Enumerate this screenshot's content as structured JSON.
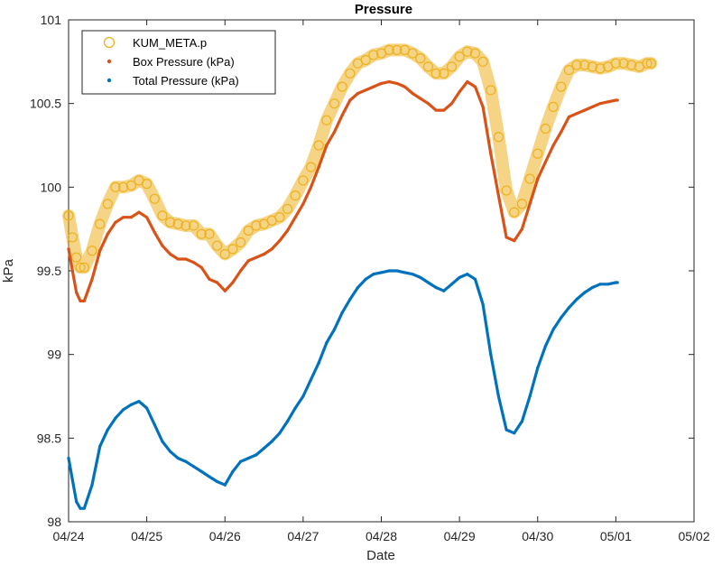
{
  "chart_data": {
    "type": "scatter",
    "title": "Pressure",
    "xlabel": "Date",
    "ylabel": "kPa",
    "x_unit": "day",
    "xlim": [
      "04/24",
      "05/02"
    ],
    "ylim": [
      98,
      101
    ],
    "x_ticks": [
      "04/24",
      "04/25",
      "04/26",
      "04/27",
      "04/28",
      "04/29",
      "04/30",
      "05/01",
      "05/02"
    ],
    "y_ticks": [
      "98",
      "98.5",
      "99",
      "99.5",
      "100",
      "100.5",
      "101"
    ],
    "grid": false,
    "legend_position": "top-left",
    "series": [
      {
        "name": "KUM_META.p",
        "marker": "circle-open",
        "color": "#EDB120",
        "x": [
          0,
          0.05,
          0.1,
          0.15,
          0.2,
          0.3,
          0.4,
          0.5,
          0.6,
          0.7,
          0.8,
          0.9,
          1.0,
          1.1,
          1.2,
          1.3,
          1.4,
          1.5,
          1.6,
          1.7,
          1.8,
          1.9,
          2.0,
          2.1,
          2.2,
          2.3,
          2.4,
          2.5,
          2.6,
          2.7,
          2.8,
          2.9,
          3.0,
          3.1,
          3.2,
          3.3,
          3.4,
          3.5,
          3.6,
          3.7,
          3.8,
          3.9,
          4.0,
          4.1,
          4.2,
          4.3,
          4.4,
          4.5,
          4.6,
          4.7,
          4.8,
          4.9,
          5.0,
          5.1,
          5.2,
          5.3,
          5.4,
          5.5,
          5.6,
          5.7,
          5.8,
          5.9,
          6.0,
          6.1,
          6.2,
          6.3,
          6.4,
          6.5,
          6.6,
          6.7,
          6.8,
          6.9,
          7.0,
          7.1,
          7.2,
          7.3,
          7.4,
          7.45
        ],
        "y": [
          99.83,
          99.7,
          99.58,
          99.52,
          99.52,
          99.62,
          99.78,
          99.9,
          100.0,
          100.0,
          100.01,
          100.04,
          100.02,
          99.93,
          99.83,
          99.79,
          99.78,
          99.77,
          99.77,
          99.72,
          99.72,
          99.65,
          99.6,
          99.63,
          99.67,
          99.74,
          99.77,
          99.78,
          99.8,
          99.82,
          99.87,
          99.95,
          100.04,
          100.12,
          100.25,
          100.4,
          100.5,
          100.6,
          100.68,
          100.74,
          100.76,
          100.79,
          100.8,
          100.82,
          100.82,
          100.82,
          100.8,
          100.77,
          100.72,
          100.68,
          100.68,
          100.72,
          100.78,
          100.81,
          100.8,
          100.75,
          100.58,
          100.3,
          99.98,
          99.85,
          99.9,
          100.05,
          100.2,
          100.35,
          100.48,
          100.6,
          100.7,
          100.73,
          100.73,
          100.72,
          100.71,
          100.72,
          100.74,
          100.74,
          100.73,
          100.72,
          100.74,
          100.74
        ]
      },
      {
        "name": "Box Pressure (kPa)",
        "marker": "dot",
        "color": "#D95319",
        "x": [
          0,
          0.05,
          0.1,
          0.15,
          0.2,
          0.3,
          0.4,
          0.5,
          0.6,
          0.7,
          0.8,
          0.9,
          1.0,
          1.1,
          1.2,
          1.3,
          1.4,
          1.5,
          1.6,
          1.7,
          1.8,
          1.9,
          2.0,
          2.1,
          2.2,
          2.3,
          2.4,
          2.5,
          2.6,
          2.7,
          2.8,
          2.9,
          3.0,
          3.1,
          3.2,
          3.3,
          3.4,
          3.5,
          3.6,
          3.7,
          3.8,
          3.9,
          4.0,
          4.1,
          4.2,
          4.3,
          4.4,
          4.5,
          4.6,
          4.7,
          4.8,
          4.9,
          5.0,
          5.1,
          5.2,
          5.3,
          5.4,
          5.5,
          5.6,
          5.7,
          5.8,
          5.9,
          6.0,
          6.1,
          6.2,
          6.3,
          6.4,
          6.5,
          6.6,
          6.7,
          6.8,
          6.9,
          7.0,
          7.02
        ],
        "y": [
          99.63,
          99.5,
          99.37,
          99.32,
          99.32,
          99.45,
          99.62,
          99.72,
          99.79,
          99.82,
          99.82,
          99.85,
          99.82,
          99.73,
          99.65,
          99.6,
          99.57,
          99.57,
          99.55,
          99.52,
          99.45,
          99.43,
          99.38,
          99.43,
          99.5,
          99.56,
          99.58,
          99.6,
          99.63,
          99.68,
          99.74,
          99.82,
          99.9,
          100.0,
          100.12,
          100.25,
          100.33,
          100.43,
          100.52,
          100.56,
          100.58,
          100.6,
          100.62,
          100.63,
          100.62,
          100.6,
          100.56,
          100.53,
          100.5,
          100.46,
          100.46,
          100.5,
          100.57,
          100.63,
          100.6,
          100.48,
          100.2,
          99.95,
          99.7,
          99.68,
          99.75,
          99.9,
          100.05,
          100.15,
          100.25,
          100.33,
          100.42,
          100.44,
          100.46,
          100.48,
          100.5,
          100.51,
          100.52,
          100.52
        ]
      },
      {
        "name": "Total Pressure (kPa)",
        "marker": "dot",
        "color": "#0072BD",
        "x": [
          0,
          0.05,
          0.1,
          0.15,
          0.2,
          0.3,
          0.4,
          0.5,
          0.6,
          0.7,
          0.8,
          0.9,
          1.0,
          1.1,
          1.2,
          1.3,
          1.4,
          1.5,
          1.6,
          1.7,
          1.8,
          1.9,
          2.0,
          2.1,
          2.2,
          2.3,
          2.4,
          2.5,
          2.6,
          2.7,
          2.8,
          2.9,
          3.0,
          3.1,
          3.2,
          3.3,
          3.4,
          3.5,
          3.6,
          3.7,
          3.8,
          3.9,
          4.0,
          4.1,
          4.2,
          4.3,
          4.4,
          4.5,
          4.6,
          4.7,
          4.8,
          4.9,
          5.0,
          5.1,
          5.2,
          5.3,
          5.4,
          5.5,
          5.6,
          5.7,
          5.8,
          5.9,
          6.0,
          6.1,
          6.2,
          6.3,
          6.4,
          6.5,
          6.6,
          6.7,
          6.8,
          6.9,
          7.0,
          7.02
        ],
        "y": [
          98.38,
          98.25,
          98.12,
          98.08,
          98.08,
          98.22,
          98.45,
          98.55,
          98.62,
          98.67,
          98.7,
          98.72,
          98.68,
          98.58,
          98.48,
          98.42,
          98.38,
          98.36,
          98.33,
          98.3,
          98.27,
          98.24,
          98.22,
          98.3,
          98.36,
          98.38,
          98.4,
          98.44,
          98.48,
          98.53,
          98.6,
          98.68,
          98.75,
          98.85,
          98.95,
          99.07,
          99.15,
          99.25,
          99.33,
          99.4,
          99.45,
          99.48,
          99.49,
          99.5,
          99.5,
          99.49,
          99.48,
          99.46,
          99.43,
          99.4,
          99.38,
          99.42,
          99.46,
          99.48,
          99.45,
          99.3,
          99.0,
          98.75,
          98.55,
          98.53,
          98.6,
          98.75,
          98.92,
          99.05,
          99.15,
          99.22,
          99.28,
          99.33,
          99.37,
          99.4,
          99.42,
          99.42,
          99.43,
          99.43
        ]
      }
    ]
  }
}
